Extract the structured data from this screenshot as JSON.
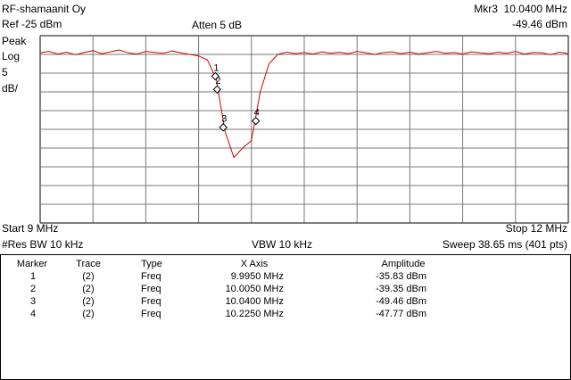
{
  "header": {
    "title": "RF-shamaanit Oy",
    "marker_readout": "Mkr3  10.0400 MHz",
    "ref": "Ref -25 dBm",
    "atten": "Atten 5 dB",
    "marker_amplitude": "-49.46 dBm"
  },
  "scale_labels": [
    "Peak",
    "Log",
    "5",
    "dB/"
  ],
  "footer": {
    "start": "Start 9 MHz",
    "stop": "Stop 12 MHz",
    "res_bw": "#Res BW 10 kHz",
    "vbw": "VBW 10 kHz",
    "sweep": "Sweep 38.65 ms (401 pts)"
  },
  "chart_data": {
    "type": "line",
    "color": "#d40000",
    "xlim": [
      9,
      12
    ],
    "ylim": [
      -75,
      -25
    ],
    "x": [
      9.0,
      9.05,
      9.1,
      9.15,
      9.2,
      9.25,
      9.3,
      9.35,
      9.4,
      9.45,
      9.5,
      9.55,
      9.6,
      9.65,
      9.7,
      9.75,
      9.8,
      9.85,
      9.9,
      9.95,
      10.0,
      10.05,
      10.1,
      10.15,
      10.2,
      10.25,
      10.3,
      10.35,
      10.4,
      10.45,
      10.5,
      10.55,
      10.6,
      10.65,
      10.7,
      10.75,
      10.8,
      10.85,
      10.9,
      10.95,
      11.0,
      11.05,
      11.1,
      11.15,
      11.2,
      11.25,
      11.3,
      11.35,
      11.4,
      11.45,
      11.5,
      11.55,
      11.6,
      11.65,
      11.7,
      11.75,
      11.8,
      11.85,
      11.9,
      11.95,
      12.0
    ],
    "values": [
      -29.6,
      -29.2,
      -29.9,
      -29.4,
      -30.1,
      -29.5,
      -29.0,
      -29.8,
      -29.3,
      -28.8,
      -29.6,
      -29.9,
      -29.2,
      -29.5,
      -29.7,
      -29.1,
      -29.6,
      -30.0,
      -30.4,
      -31.5,
      -36.5,
      -50.5,
      -57.5,
      -55.0,
      -53.0,
      -40.0,
      -32.5,
      -30.0,
      -29.4,
      -29.8,
      -29.5,
      -29.9,
      -29.3,
      -29.7,
      -29.4,
      -29.8,
      -29.2,
      -29.6,
      -30.0,
      -29.5,
      -29.3,
      -29.8,
      -29.4,
      -29.9,
      -29.6,
      -29.2,
      -29.7,
      -29.5,
      -29.9,
      -29.3,
      -29.6,
      -29.8,
      -29.4,
      -29.7,
      -29.2,
      -29.9,
      -29.5,
      -29.6,
      -30.1,
      -29.4,
      -29.8
    ],
    "markers": [
      {
        "label": "1",
        "trace": "(2)",
        "type": "Freq",
        "x": 9.995,
        "x_label": "9.9950 MHz",
        "y": -35.83,
        "y_label": "-35.83 dBm"
      },
      {
        "label": "2",
        "trace": "(2)",
        "type": "Freq",
        "x": 10.005,
        "x_label": "10.0050 MHz",
        "y": -39.35,
        "y_label": "-39.35 dBm"
      },
      {
        "label": "3",
        "trace": "(2)",
        "type": "Freq",
        "x": 10.04,
        "x_label": "10.0400 MHz",
        "y": -49.46,
        "y_label": "-49.46 dBm"
      },
      {
        "label": "4",
        "trace": "(2)",
        "type": "Freq",
        "x": 10.225,
        "x_label": "10.2250 MHz",
        "y": -47.77,
        "y_label": "-47.77 dBm"
      }
    ]
  },
  "marker_table": {
    "columns": [
      "Marker",
      "Trace",
      "Type",
      "X Axis",
      "Amplitude"
    ]
  }
}
